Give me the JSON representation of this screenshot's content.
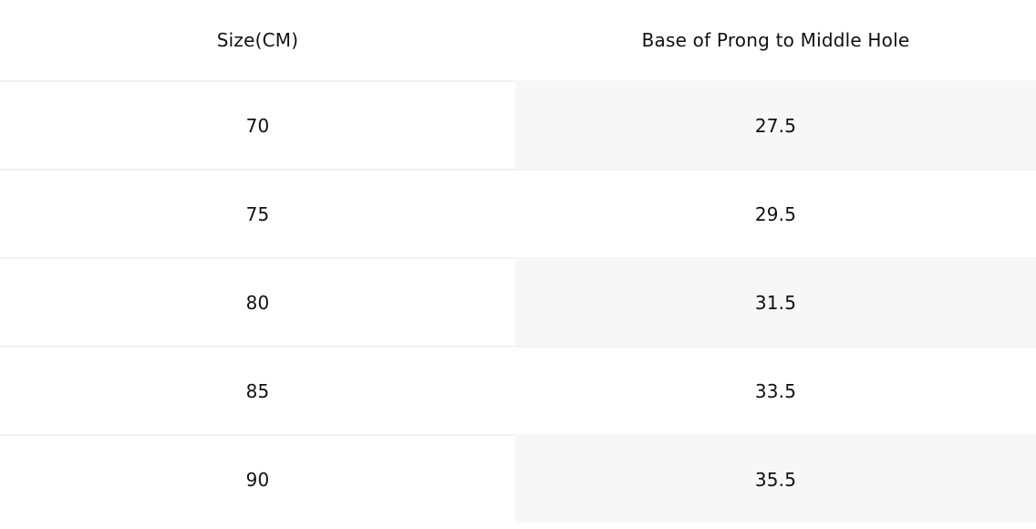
{
  "table": {
    "header": [
      "Size(CM)",
      "Base of Prong to Middle Hole"
    ],
    "rows": [
      [
        "70",
        "27.5"
      ],
      [
        "75",
        "29.5"
      ],
      [
        "80",
        "31.5"
      ],
      [
        "85",
        "33.5"
      ],
      [
        "90",
        "35.5"
      ]
    ]
  }
}
